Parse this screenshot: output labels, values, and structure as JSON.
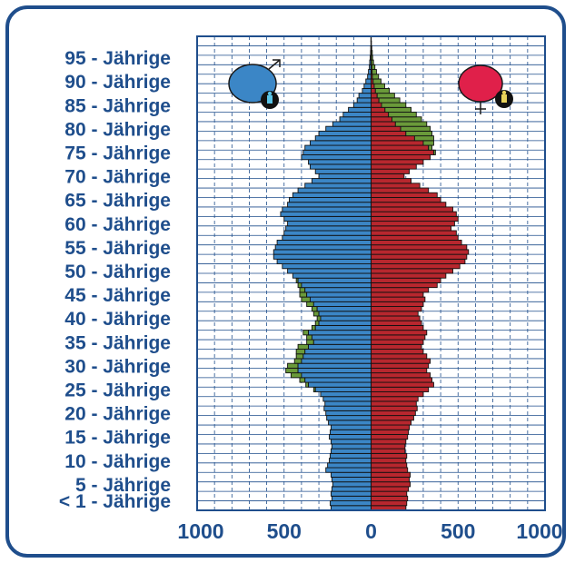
{
  "chart_data": {
    "type": "population-pyramid",
    "title": "",
    "colors": {
      "male": "#3b86c6",
      "female": "#b8272e",
      "surplus": "#6a9a3a",
      "frame": "#1f4e8c",
      "grid": "#1f4e8c"
    },
    "y_tick_labels": [
      {
        "age": 0,
        "label": "< 1 - Jährige"
      },
      {
        "age": 5,
        "label": "5 - Jährige"
      },
      {
        "age": 10,
        "label": "10 - Jährige"
      },
      {
        "age": 15,
        "label": "15 - Jährige"
      },
      {
        "age": 20,
        "label": "20 - Jährige"
      },
      {
        "age": 25,
        "label": "25 - Jährige"
      },
      {
        "age": 30,
        "label": "30 - Jährige"
      },
      {
        "age": 35,
        "label": "35 - Jährige"
      },
      {
        "age": 40,
        "label": "40 - Jährige"
      },
      {
        "age": 45,
        "label": "45 - Jährige"
      },
      {
        "age": 50,
        "label": "50 - Jährige"
      },
      {
        "age": 55,
        "label": "55 - Jährige"
      },
      {
        "age": 60,
        "label": "60 - Jährige"
      },
      {
        "age": 65,
        "label": "65 - Jährige"
      },
      {
        "age": 70,
        "label": "70 - Jährige"
      },
      {
        "age": 75,
        "label": "75 - Jährige"
      },
      {
        "age": 80,
        "label": "80 - Jährige"
      },
      {
        "age": 85,
        "label": "85 - Jährige"
      },
      {
        "age": 90,
        "label": "90 - Jährige"
      },
      {
        "age": 95,
        "label": "95 - Jährige"
      }
    ],
    "x_tick_labels": [
      {
        "value": -1000,
        "label": "1000"
      },
      {
        "value": -500,
        "label": "500"
      },
      {
        "value": 0,
        "label": "0"
      },
      {
        "value": 500,
        "label": "500"
      },
      {
        "value": 1000,
        "label": "1000"
      }
    ],
    "xlim": [
      -1000,
      1000
    ],
    "ylim": [
      0,
      100
    ],
    "grid": true,
    "legend": [
      {
        "name": "male symbol",
        "icon": "male-symbol-icon",
        "position": "top-left"
      },
      {
        "name": "female symbol",
        "icon": "female-symbol-icon",
        "position": "top-right"
      }
    ],
    "ages": [
      0,
      1,
      2,
      3,
      4,
      5,
      6,
      7,
      8,
      9,
      10,
      11,
      12,
      13,
      14,
      15,
      16,
      17,
      18,
      19,
      20,
      21,
      22,
      23,
      24,
      25,
      26,
      27,
      28,
      29,
      30,
      31,
      32,
      33,
      34,
      35,
      36,
      37,
      38,
      39,
      40,
      41,
      42,
      43,
      44,
      45,
      46,
      47,
      48,
      49,
      50,
      51,
      52,
      53,
      54,
      55,
      56,
      57,
      58,
      59,
      60,
      61,
      62,
      63,
      64,
      65,
      66,
      67,
      68,
      69,
      70,
      71,
      72,
      73,
      74,
      75,
      76,
      77,
      78,
      79,
      80,
      81,
      82,
      83,
      84,
      85,
      86,
      87,
      88,
      89,
      90,
      91,
      92,
      93,
      94,
      95,
      96,
      97,
      98,
      99
    ],
    "male": [
      230,
      235,
      225,
      230,
      225,
      220,
      225,
      230,
      260,
      250,
      240,
      235,
      230,
      225,
      230,
      240,
      235,
      230,
      245,
      255,
      260,
      270,
      265,
      275,
      290,
      320,
      360,
      380,
      400,
      420,
      420,
      400,
      390,
      380,
      360,
      330,
      340,
      360,
      320,
      300,
      290,
      300,
      310,
      330,
      350,
      370,
      380,
      400,
      420,
      450,
      480,
      510,
      540,
      560,
      560,
      550,
      540,
      510,
      500,
      490,
      480,
      500,
      520,
      510,
      480,
      470,
      450,
      420,
      380,
      340,
      300,
      320,
      350,
      360,
      400,
      390,
      380,
      350,
      320,
      300,
      260,
      220,
      180,
      160,
      130,
      100,
      80,
      70,
      50,
      40,
      30,
      20,
      15,
      10,
      8,
      5,
      3,
      2,
      1,
      1
    ],
    "female": [
      200,
      205,
      210,
      205,
      215,
      225,
      220,
      225,
      210,
      205,
      200,
      205,
      195,
      195,
      200,
      210,
      215,
      220,
      230,
      245,
      255,
      265,
      260,
      270,
      300,
      330,
      360,
      350,
      340,
      320,
      330,
      340,
      320,
      300,
      290,
      300,
      310,
      320,
      300,
      290,
      280,
      270,
      290,
      300,
      310,
      300,
      330,
      380,
      400,
      430,
      470,
      510,
      540,
      550,
      560,
      550,
      520,
      500,
      490,
      460,
      480,
      500,
      490,
      470,
      430,
      400,
      380,
      330,
      280,
      230,
      190,
      220,
      260,
      300,
      340,
      360,
      330,
      300,
      250,
      200,
      170,
      140,
      120,
      100,
      80,
      60,
      45,
      35,
      25,
      18,
      12,
      8,
      6,
      4,
      2,
      1,
      1,
      0,
      0,
      0
    ],
    "female_surplus": [
      0,
      0,
      0,
      0,
      0,
      0,
      0,
      0,
      0,
      0,
      0,
      0,
      0,
      0,
      0,
      0,
      0,
      0,
      0,
      0,
      0,
      0,
      0,
      0,
      0,
      0,
      0,
      0,
      0,
      0,
      0,
      0,
      0,
      0,
      0,
      0,
      0,
      0,
      0,
      0,
      0,
      0,
      0,
      0,
      0,
      0,
      0,
      0,
      0,
      0,
      0,
      0,
      0,
      0,
      0,
      0,
      0,
      0,
      0,
      0,
      0,
      0,
      0,
      0,
      0,
      0,
      0,
      0,
      0,
      0,
      0,
      0,
      0,
      0,
      0,
      10,
      20,
      60,
      110,
      150,
      170,
      180,
      170,
      160,
      150,
      140,
      120,
      100,
      80,
      60,
      45,
      35,
      25,
      18,
      12,
      8,
      6,
      4,
      2,
      1
    ],
    "male_surplus": [
      0,
      0,
      0,
      0,
      0,
      0,
      0,
      0,
      0,
      0,
      0,
      0,
      0,
      0,
      0,
      0,
      0,
      0,
      0,
      0,
      0,
      0,
      0,
      0,
      0,
      10,
      15,
      30,
      60,
      70,
      60,
      40,
      40,
      50,
      60,
      40,
      30,
      30,
      20,
      20,
      20,
      30,
      30,
      40,
      50,
      40,
      30,
      20,
      10,
      0,
      0,
      0,
      0,
      0,
      0,
      0,
      0,
      0,
      0,
      0,
      0,
      0,
      0,
      0,
      0,
      0,
      0,
      0,
      0,
      0,
      0,
      0,
      0,
      0,
      0,
      0,
      0,
      0,
      0,
      0,
      0,
      0,
      0,
      0,
      0,
      0,
      0,
      0,
      0,
      0,
      0,
      0,
      0,
      0,
      0,
      0,
      0,
      0,
      0,
      0
    ]
  }
}
